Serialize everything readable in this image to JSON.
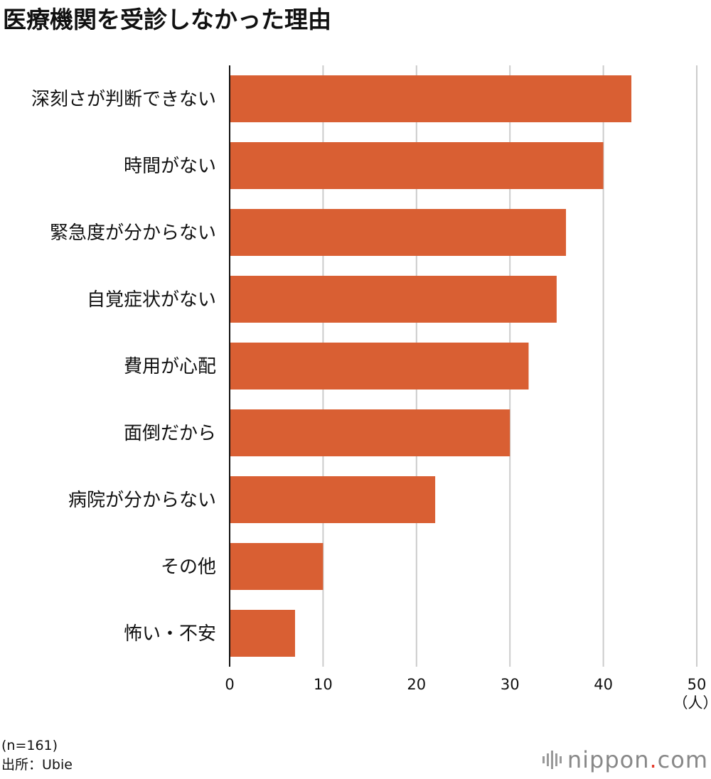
{
  "chart_data": {
    "type": "bar",
    "orientation": "horizontal",
    "title": "医療機関を受診しなかった理由",
    "categories": [
      "深刻さが判断できない",
      "時間がない",
      "緊急度が分からない",
      "自覚症状がない",
      "費用が心配",
      "面倒だから",
      "病院が分からない",
      "その他",
      "怖い・不安"
    ],
    "values": [
      43,
      40,
      36,
      35,
      32,
      30,
      22,
      10,
      7
    ],
    "xlim": [
      0,
      50
    ],
    "xticks": [
      "0",
      "10",
      "20",
      "30",
      "40",
      "50"
    ],
    "unit": "（人）",
    "grid": true,
    "bar_color": "#d95f33"
  },
  "footnote": {
    "sample": "(n=161)",
    "source": "出所：Ubie"
  },
  "brand": {
    "name": "nippon",
    "dot": ".",
    "suffix": "com"
  }
}
